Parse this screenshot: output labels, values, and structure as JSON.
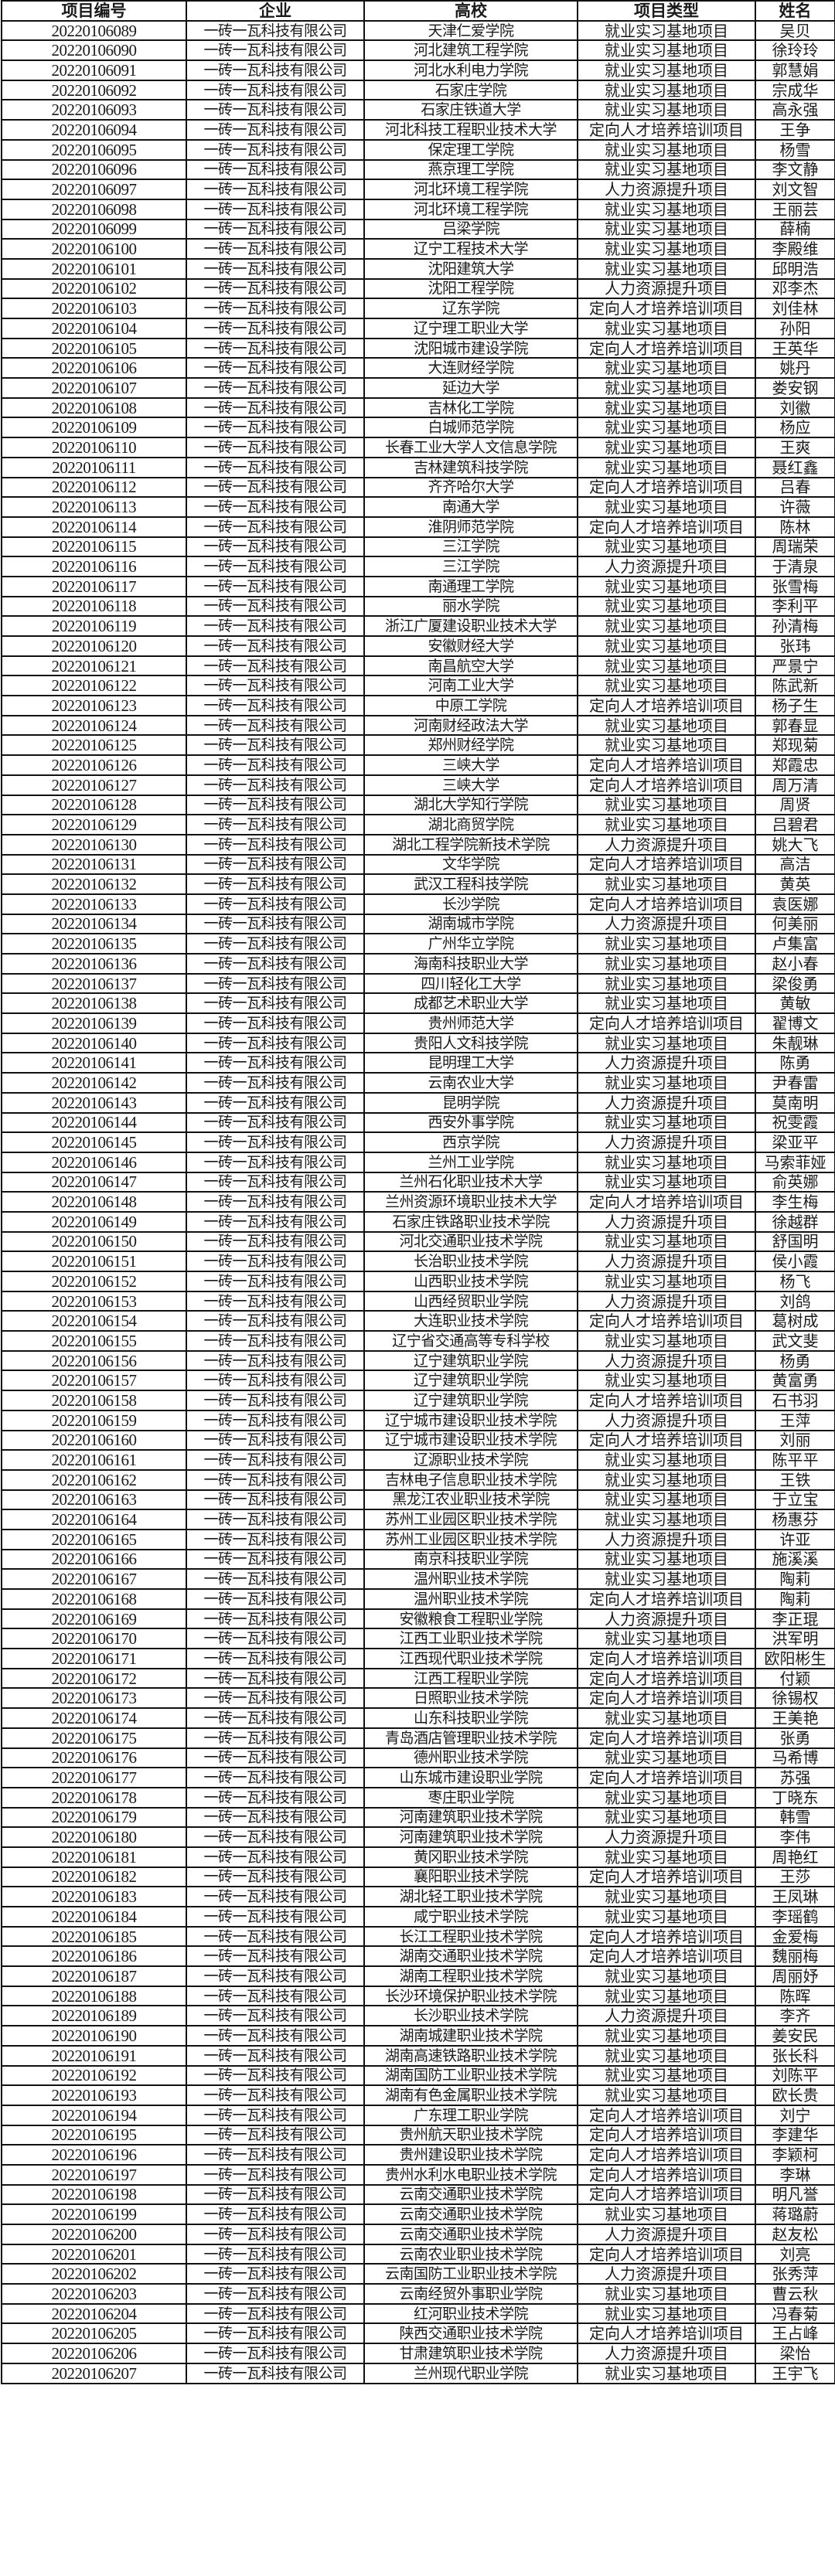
{
  "headers": [
    "项目编号",
    "企业",
    "高校",
    "项目类型",
    "姓名"
  ],
  "rows": [
    [
      "20220106089",
      "一砖一瓦科技有限公司",
      "天津仁爱学院",
      "就业实习基地项目",
      "吴贝"
    ],
    [
      "20220106090",
      "一砖一瓦科技有限公司",
      "河北建筑工程学院",
      "就业实习基地项目",
      "徐玲玲"
    ],
    [
      "20220106091",
      "一砖一瓦科技有限公司",
      "河北水利电力学院",
      "就业实习基地项目",
      "郭慧娟"
    ],
    [
      "20220106092",
      "一砖一瓦科技有限公司",
      "石家庄学院",
      "就业实习基地项目",
      "宗成华"
    ],
    [
      "20220106093",
      "一砖一瓦科技有限公司",
      "石家庄铁道大学",
      "就业实习基地项目",
      "高永强"
    ],
    [
      "20220106094",
      "一砖一瓦科技有限公司",
      "河北科技工程职业技术大学",
      "定向人才培养培训项目",
      "王争"
    ],
    [
      "20220106095",
      "一砖一瓦科技有限公司",
      "保定理工学院",
      "就业实习基地项目",
      "杨雪"
    ],
    [
      "20220106096",
      "一砖一瓦科技有限公司",
      "燕京理工学院",
      "就业实习基地项目",
      "李文静"
    ],
    [
      "20220106097",
      "一砖一瓦科技有限公司",
      "河北环境工程学院",
      "人力资源提升项目",
      "刘文智"
    ],
    [
      "20220106098",
      "一砖一瓦科技有限公司",
      "河北环境工程学院",
      "就业实习基地项目",
      "王丽芸"
    ],
    [
      "20220106099",
      "一砖一瓦科技有限公司",
      "吕梁学院",
      "就业实习基地项目",
      "薛楠"
    ],
    [
      "20220106100",
      "一砖一瓦科技有限公司",
      "辽宁工程技术大学",
      "就业实习基地项目",
      "李殿维"
    ],
    [
      "20220106101",
      "一砖一瓦科技有限公司",
      "沈阳建筑大学",
      "就业实习基地项目",
      "邱明浩"
    ],
    [
      "20220106102",
      "一砖一瓦科技有限公司",
      "沈阳工程学院",
      "人力资源提升项目",
      "邓李杰"
    ],
    [
      "20220106103",
      "一砖一瓦科技有限公司",
      "辽东学院",
      "定向人才培养培训项目",
      "刘佳林"
    ],
    [
      "20220106104",
      "一砖一瓦科技有限公司",
      "辽宁理工职业大学",
      "就业实习基地项目",
      "孙阳"
    ],
    [
      "20220106105",
      "一砖一瓦科技有限公司",
      "沈阳城市建设学院",
      "定向人才培养培训项目",
      "王英华"
    ],
    [
      "20220106106",
      "一砖一瓦科技有限公司",
      "大连财经学院",
      "就业实习基地项目",
      "姚丹"
    ],
    [
      "20220106107",
      "一砖一瓦科技有限公司",
      "延边大学",
      "就业实习基地项目",
      "娄安钢"
    ],
    [
      "20220106108",
      "一砖一瓦科技有限公司",
      "吉林化工学院",
      "就业实习基地项目",
      "刘徽"
    ],
    [
      "20220106109",
      "一砖一瓦科技有限公司",
      "白城师范学院",
      "就业实习基地项目",
      "杨应"
    ],
    [
      "20220106110",
      "一砖一瓦科技有限公司",
      "长春工业大学人文信息学院",
      "就业实习基地项目",
      "王爽"
    ],
    [
      "20220106111",
      "一砖一瓦科技有限公司",
      "吉林建筑科技学院",
      "就业实习基地项目",
      "聂红鑫"
    ],
    [
      "20220106112",
      "一砖一瓦科技有限公司",
      "齐齐哈尔大学",
      "定向人才培养培训项目",
      "吕春"
    ],
    [
      "20220106113",
      "一砖一瓦科技有限公司",
      "南通大学",
      "就业实习基地项目",
      "许薇"
    ],
    [
      "20220106114",
      "一砖一瓦科技有限公司",
      "淮阴师范学院",
      "定向人才培养培训项目",
      "陈林"
    ],
    [
      "20220106115",
      "一砖一瓦科技有限公司",
      "三江学院",
      "就业实习基地项目",
      "周瑞荣"
    ],
    [
      "20220106116",
      "一砖一瓦科技有限公司",
      "三江学院",
      "人力资源提升项目",
      "于清泉"
    ],
    [
      "20220106117",
      "一砖一瓦科技有限公司",
      "南通理工学院",
      "就业实习基地项目",
      "张雪梅"
    ],
    [
      "20220106118",
      "一砖一瓦科技有限公司",
      "丽水学院",
      "就业实习基地项目",
      "李利平"
    ],
    [
      "20220106119",
      "一砖一瓦科技有限公司",
      "浙江广厦建设职业技术大学",
      "就业实习基地项目",
      "孙清梅"
    ],
    [
      "20220106120",
      "一砖一瓦科技有限公司",
      "安徽财经大学",
      "就业实习基地项目",
      "张玮"
    ],
    [
      "20220106121",
      "一砖一瓦科技有限公司",
      "南昌航空大学",
      "就业实习基地项目",
      "严景宁"
    ],
    [
      "20220106122",
      "一砖一瓦科技有限公司",
      "河南工业大学",
      "就业实习基地项目",
      "陈武新"
    ],
    [
      "20220106123",
      "一砖一瓦科技有限公司",
      "中原工学院",
      "定向人才培养培训项目",
      "杨子生"
    ],
    [
      "20220106124",
      "一砖一瓦科技有限公司",
      "河南财经政法大学",
      "就业实习基地项目",
      "郭春显"
    ],
    [
      "20220106125",
      "一砖一瓦科技有限公司",
      "郑州财经学院",
      "就业实习基地项目",
      "郑现菊"
    ],
    [
      "20220106126",
      "一砖一瓦科技有限公司",
      "三峡大学",
      "定向人才培养培训项目",
      "郑霞忠"
    ],
    [
      "20220106127",
      "一砖一瓦科技有限公司",
      "三峡大学",
      "定向人才培养培训项目",
      "周万清"
    ],
    [
      "20220106128",
      "一砖一瓦科技有限公司",
      "湖北大学知行学院",
      "就业实习基地项目",
      "周贤"
    ],
    [
      "20220106129",
      "一砖一瓦科技有限公司",
      "湖北商贸学院",
      "就业实习基地项目",
      "吕碧君"
    ],
    [
      "20220106130",
      "一砖一瓦科技有限公司",
      "湖北工程学院新技术学院",
      "人力资源提升项目",
      "姚大飞"
    ],
    [
      "20220106131",
      "一砖一瓦科技有限公司",
      "文华学院",
      "定向人才培养培训项目",
      "高洁"
    ],
    [
      "20220106132",
      "一砖一瓦科技有限公司",
      "武汉工程科技学院",
      "就业实习基地项目",
      "黄英"
    ],
    [
      "20220106133",
      "一砖一瓦科技有限公司",
      "长沙学院",
      "定向人才培养培训项目",
      "袁医娜"
    ],
    [
      "20220106134",
      "一砖一瓦科技有限公司",
      "湖南城市学院",
      "人力资源提升项目",
      "何美丽"
    ],
    [
      "20220106135",
      "一砖一瓦科技有限公司",
      "广州华立学院",
      "就业实习基地项目",
      "卢集富"
    ],
    [
      "20220106136",
      "一砖一瓦科技有限公司",
      "海南科技职业大学",
      "就业实习基地项目",
      "赵小春"
    ],
    [
      "20220106137",
      "一砖一瓦科技有限公司",
      "四川轻化工大学",
      "就业实习基地项目",
      "梁俊勇"
    ],
    [
      "20220106138",
      "一砖一瓦科技有限公司",
      "成都艺术职业大学",
      "就业实习基地项目",
      "黄敏"
    ],
    [
      "20220106139",
      "一砖一瓦科技有限公司",
      "贵州师范大学",
      "定向人才培养培训项目",
      "翟博文"
    ],
    [
      "20220106140",
      "一砖一瓦科技有限公司",
      "贵阳人文科技学院",
      "就业实习基地项目",
      "朱靓琳"
    ],
    [
      "20220106141",
      "一砖一瓦科技有限公司",
      "昆明理工大学",
      "人力资源提升项目",
      "陈勇"
    ],
    [
      "20220106142",
      "一砖一瓦科技有限公司",
      "云南农业大学",
      "就业实习基地项目",
      "尹春雷"
    ],
    [
      "20220106143",
      "一砖一瓦科技有限公司",
      "昆明学院",
      "人力资源提升项目",
      "莫南明"
    ],
    [
      "20220106144",
      "一砖一瓦科技有限公司",
      "西安外事学院",
      "就业实习基地项目",
      "祝雯霞"
    ],
    [
      "20220106145",
      "一砖一瓦科技有限公司",
      "西京学院",
      "人力资源提升项目",
      "梁亚平"
    ],
    [
      "20220106146",
      "一砖一瓦科技有限公司",
      "兰州工业学院",
      "就业实习基地项目",
      "马索菲娅"
    ],
    [
      "20220106147",
      "一砖一瓦科技有限公司",
      "兰州石化职业技术大学",
      "就业实习基地项目",
      "俞英娜"
    ],
    [
      "20220106148",
      "一砖一瓦科技有限公司",
      "兰州资源环境职业技术大学",
      "定向人才培养培训项目",
      "李生梅"
    ],
    [
      "20220106149",
      "一砖一瓦科技有限公司",
      "石家庄铁路职业技术学院",
      "人力资源提升项目",
      "徐越群"
    ],
    [
      "20220106150",
      "一砖一瓦科技有限公司",
      "河北交通职业技术学院",
      "就业实习基地项目",
      "舒国明"
    ],
    [
      "20220106151",
      "一砖一瓦科技有限公司",
      "长治职业技术学院",
      "人力资源提升项目",
      "侯小霞"
    ],
    [
      "20220106152",
      "一砖一瓦科技有限公司",
      "山西职业技术学院",
      "就业实习基地项目",
      "杨飞"
    ],
    [
      "20220106153",
      "一砖一瓦科技有限公司",
      "山西经贸职业学院",
      "人力资源提升项目",
      "刘鸽"
    ],
    [
      "20220106154",
      "一砖一瓦科技有限公司",
      "大连职业技术学院",
      "定向人才培养培训项目",
      "葛树成"
    ],
    [
      "20220106155",
      "一砖一瓦科技有限公司",
      "辽宁省交通高等专科学校",
      "就业实习基地项目",
      "武文斐"
    ],
    [
      "20220106156",
      "一砖一瓦科技有限公司",
      "辽宁建筑职业学院",
      "人力资源提升项目",
      "杨勇"
    ],
    [
      "20220106157",
      "一砖一瓦科技有限公司",
      "辽宁建筑职业学院",
      "就业实习基地项目",
      "黄富勇"
    ],
    [
      "20220106158",
      "一砖一瓦科技有限公司",
      "辽宁建筑职业学院",
      "定向人才培养培训项目",
      "石书羽"
    ],
    [
      "20220106159",
      "一砖一瓦科技有限公司",
      "辽宁城市建设职业技术学院",
      "人力资源提升项目",
      "王萍"
    ],
    [
      "20220106160",
      "一砖一瓦科技有限公司",
      "辽宁城市建设职业技术学院",
      "定向人才培养培训项目",
      "刘丽"
    ],
    [
      "20220106161",
      "一砖一瓦科技有限公司",
      "辽源职业技术学院",
      "就业实习基地项目",
      "陈平平"
    ],
    [
      "20220106162",
      "一砖一瓦科技有限公司",
      "吉林电子信息职业技术学院",
      "就业实习基地项目",
      "王铁"
    ],
    [
      "20220106163",
      "一砖一瓦科技有限公司",
      "黑龙江农业职业技术学院",
      "就业实习基地项目",
      "于立宝"
    ],
    [
      "20220106164",
      "一砖一瓦科技有限公司",
      "苏州工业园区职业技术学院",
      "就业实习基地项目",
      "杨惠芬"
    ],
    [
      "20220106165",
      "一砖一瓦科技有限公司",
      "苏州工业园区职业技术学院",
      "人力资源提升项目",
      "许亚"
    ],
    [
      "20220106166",
      "一砖一瓦科技有限公司",
      "南京科技职业学院",
      "就业实习基地项目",
      "施溪溪"
    ],
    [
      "20220106167",
      "一砖一瓦科技有限公司",
      "温州职业技术学院",
      "就业实习基地项目",
      "陶莉"
    ],
    [
      "20220106168",
      "一砖一瓦科技有限公司",
      "温州职业技术学院",
      "定向人才培养培训项目",
      "陶莉"
    ],
    [
      "20220106169",
      "一砖一瓦科技有限公司",
      "安徽粮食工程职业学院",
      "人力资源提升项目",
      "李正琨"
    ],
    [
      "20220106170",
      "一砖一瓦科技有限公司",
      "江西工业职业技术学院",
      "就业实习基地项目",
      "洪军明"
    ],
    [
      "20220106171",
      "一砖一瓦科技有限公司",
      "江西现代职业技术学院",
      "定向人才培养培训项目",
      "欧阳彬生"
    ],
    [
      "20220106172",
      "一砖一瓦科技有限公司",
      "江西工程职业学院",
      "定向人才培养培训项目",
      "付颖"
    ],
    [
      "20220106173",
      "一砖一瓦科技有限公司",
      "日照职业技术学院",
      "定向人才培养培训项目",
      "徐锡权"
    ],
    [
      "20220106174",
      "一砖一瓦科技有限公司",
      "山东科技职业学院",
      "就业实习基地项目",
      "王美艳"
    ],
    [
      "20220106175",
      "一砖一瓦科技有限公司",
      "青岛酒店管理职业技术学院",
      "定向人才培养培训项目",
      "张勇"
    ],
    [
      "20220106176",
      "一砖一瓦科技有限公司",
      "德州职业技术学院",
      "就业实习基地项目",
      "马希博"
    ],
    [
      "20220106177",
      "一砖一瓦科技有限公司",
      "山东城市建设职业学院",
      "定向人才培养培训项目",
      "苏强"
    ],
    [
      "20220106178",
      "一砖一瓦科技有限公司",
      "枣庄职业学院",
      "就业实习基地项目",
      "丁晓东"
    ],
    [
      "20220106179",
      "一砖一瓦科技有限公司",
      "河南建筑职业技术学院",
      "就业实习基地项目",
      "韩雪"
    ],
    [
      "20220106180",
      "一砖一瓦科技有限公司",
      "河南建筑职业技术学院",
      "人力资源提升项目",
      "李伟"
    ],
    [
      "20220106181",
      "一砖一瓦科技有限公司",
      "黄冈职业技术学院",
      "就业实习基地项目",
      "周艳红"
    ],
    [
      "20220106182",
      "一砖一瓦科技有限公司",
      "襄阳职业技术学院",
      "定向人才培养培训项目",
      "王莎"
    ],
    [
      "20220106183",
      "一砖一瓦科技有限公司",
      "湖北轻工职业技术学院",
      "就业实习基地项目",
      "王凤琳"
    ],
    [
      "20220106184",
      "一砖一瓦科技有限公司",
      "咸宁职业技术学院",
      "就业实习基地项目",
      "李瑶鹤"
    ],
    [
      "20220106185",
      "一砖一瓦科技有限公司",
      "长江工程职业技术学院",
      "定向人才培养培训项目",
      "金爱梅"
    ],
    [
      "20220106186",
      "一砖一瓦科技有限公司",
      "湖南交通职业技术学院",
      "定向人才培养培训项目",
      "魏丽梅"
    ],
    [
      "20220106187",
      "一砖一瓦科技有限公司",
      "湖南工程职业技术学院",
      "就业实习基地项目",
      "周丽妤"
    ],
    [
      "20220106188",
      "一砖一瓦科技有限公司",
      "长沙环境保护职业技术学院",
      "就业实习基地项目",
      "陈晖"
    ],
    [
      "20220106189",
      "一砖一瓦科技有限公司",
      "长沙职业技术学院",
      "人力资源提升项目",
      "李齐"
    ],
    [
      "20220106190",
      "一砖一瓦科技有限公司",
      "湖南城建职业技术学院",
      "就业实习基地项目",
      "姜安民"
    ],
    [
      "20220106191",
      "一砖一瓦科技有限公司",
      "湖南高速铁路职业技术学院",
      "就业实习基地项目",
      "张长科"
    ],
    [
      "20220106192",
      "一砖一瓦科技有限公司",
      "湖南国防工业职业技术学院",
      "就业实习基地项目",
      "刘陈平"
    ],
    [
      "20220106193",
      "一砖一瓦科技有限公司",
      "湖南有色金属职业技术学院",
      "就业实习基地项目",
      "欧长贵"
    ],
    [
      "20220106194",
      "一砖一瓦科技有限公司",
      "广东理工职业学院",
      "定向人才培养培训项目",
      "刘宁"
    ],
    [
      "20220106195",
      "一砖一瓦科技有限公司",
      "贵州航天职业技术学院",
      "定向人才培养培训项目",
      "李建华"
    ],
    [
      "20220106196",
      "一砖一瓦科技有限公司",
      "贵州建设职业技术学院",
      "定向人才培养培训项目",
      "李颖柯"
    ],
    [
      "20220106197",
      "一砖一瓦科技有限公司",
      "贵州水利水电职业技术学院",
      "定向人才培养培训项目",
      "李琳"
    ],
    [
      "20220106198",
      "一砖一瓦科技有限公司",
      "云南交通职业技术学院",
      "定向人才培养培训项目",
      "明凡誉"
    ],
    [
      "20220106199",
      "一砖一瓦科技有限公司",
      "云南交通职业技术学院",
      "就业实习基地项目",
      "蒋璐蔚"
    ],
    [
      "20220106200",
      "一砖一瓦科技有限公司",
      "云南交通职业技术学院",
      "人力资源提升项目",
      "赵友松"
    ],
    [
      "20220106201",
      "一砖一瓦科技有限公司",
      "云南农业职业技术学院",
      "定向人才培养培训项目",
      "刘亮"
    ],
    [
      "20220106202",
      "一砖一瓦科技有限公司",
      "云南国防工业职业技术学院",
      "人力资源提升项目",
      "张秀萍"
    ],
    [
      "20220106203",
      "一砖一瓦科技有限公司",
      "云南经贸外事职业学院",
      "就业实习基地项目",
      "曹云秋"
    ],
    [
      "20220106204",
      "一砖一瓦科技有限公司",
      "红河职业技术学院",
      "就业实习基地项目",
      "冯春菊"
    ],
    [
      "20220106205",
      "一砖一瓦科技有限公司",
      "陕西交通职业技术学院",
      "定向人才培养培训项目",
      "王占峰"
    ],
    [
      "20220106206",
      "一砖一瓦科技有限公司",
      "甘肃建筑职业技术学院",
      "人力资源提升项目",
      "梁怡"
    ],
    [
      "20220106207",
      "一砖一瓦科技有限公司",
      "兰州现代职业学院",
      "就业实习基地项目",
      "王宇飞"
    ]
  ]
}
